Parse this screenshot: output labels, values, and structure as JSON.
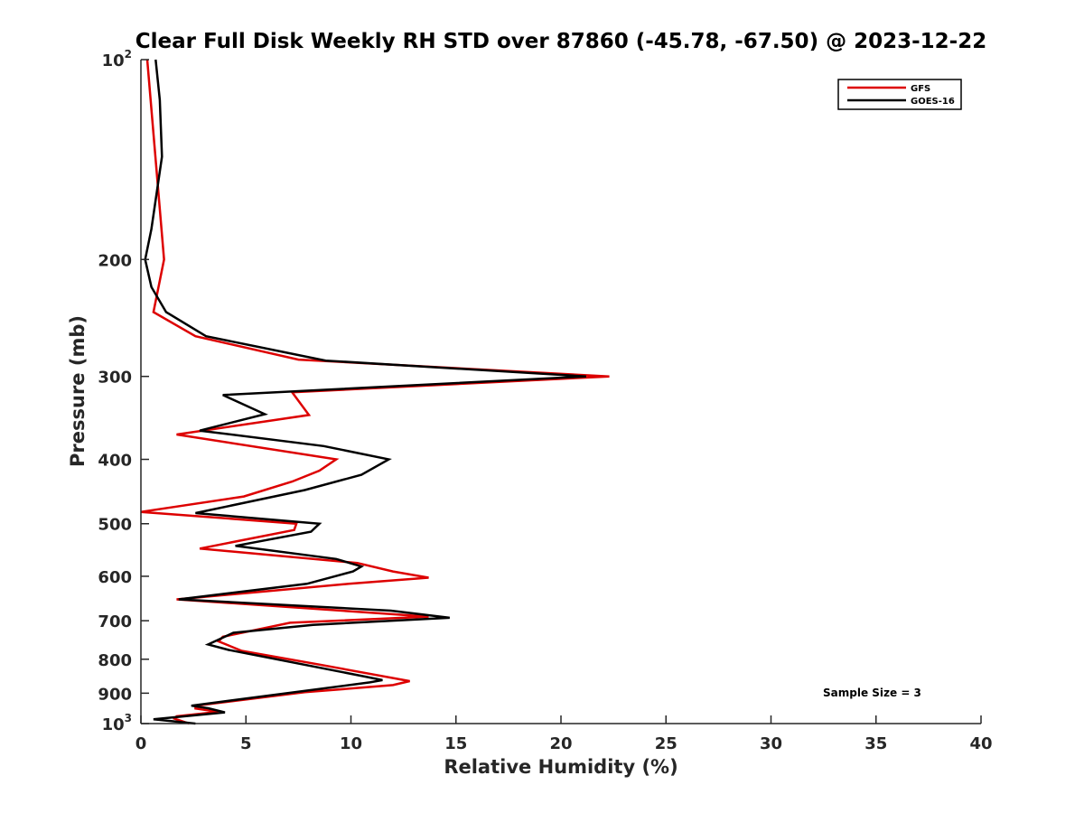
{
  "chart_data": {
    "type": "line",
    "title": "Clear Full Disk Weekly RH STD over 87860 (-45.78, -67.50) @ 2023-12-22",
    "xlabel": "Relative Humidity (%)",
    "ylabel": "Pressure (mb)",
    "xlim": [
      0,
      40
    ],
    "ylim": [
      1000,
      100
    ],
    "y_scale": "log",
    "x_ticks": [
      "0",
      "5",
      "10",
      "15",
      "20",
      "25",
      "30",
      "35",
      "40"
    ],
    "y_ticks": [
      {
        "value": 100,
        "label": "10",
        "sup": "2"
      },
      {
        "value": 200,
        "label": "200"
      },
      {
        "value": 300,
        "label": "300"
      },
      {
        "value": 400,
        "label": "400"
      },
      {
        "value": 500,
        "label": "500"
      },
      {
        "value": 600,
        "label": "600"
      },
      {
        "value": 700,
        "label": "700"
      },
      {
        "value": 800,
        "label": "800"
      },
      {
        "value": 900,
        "label": "900"
      },
      {
        "value": 1000,
        "label": "10",
        "sup": "3"
      }
    ],
    "grid": false,
    "legend_position": "top-right",
    "annotation": "Sample Size = 3",
    "series": [
      {
        "name": "GFS",
        "color": "#dd0000",
        "points": [
          [
            0.3,
            100
          ],
          [
            1.1,
            200
          ],
          [
            0.6,
            240
          ],
          [
            2.6,
            261
          ],
          [
            7.5,
            283
          ],
          [
            22.3,
            300
          ],
          [
            7.2,
            317
          ],
          [
            8.0,
            343
          ],
          [
            1.7,
            367
          ],
          [
            9.3,
            400
          ],
          [
            8.5,
            416
          ],
          [
            7.2,
            432
          ],
          [
            4.9,
            455
          ],
          [
            0.0,
            480
          ],
          [
            7.4,
            500
          ],
          [
            7.3,
            511
          ],
          [
            2.8,
            545
          ],
          [
            10.3,
            573
          ],
          [
            12.0,
            590
          ],
          [
            13.7,
            603
          ],
          [
            9.9,
            616
          ],
          [
            1.7,
            650
          ],
          [
            13.7,
            690
          ],
          [
            7.1,
            705
          ],
          [
            3.9,
            740
          ],
          [
            3.7,
            752
          ],
          [
            4.8,
            777
          ],
          [
            8.5,
            815
          ],
          [
            12.8,
            863
          ],
          [
            12.0,
            875
          ],
          [
            7.8,
            897
          ],
          [
            2.6,
            940
          ],
          [
            2.6,
            949
          ],
          [
            3.7,
            960
          ],
          [
            1.7,
            975
          ],
          [
            1.6,
            983
          ],
          [
            2.3,
            1000
          ]
        ]
      },
      {
        "name": "GOES-16",
        "color": "#000000",
        "points": [
          [
            0.7,
            100
          ],
          [
            0.9,
            115
          ],
          [
            1.0,
            140
          ],
          [
            0.5,
            180
          ],
          [
            0.2,
            200
          ],
          [
            0.5,
            220
          ],
          [
            1.2,
            240
          ],
          [
            3.1,
            261
          ],
          [
            8.8,
            284
          ],
          [
            21.2,
            300
          ],
          [
            3.9,
            320
          ],
          [
            5.9,
            342
          ],
          [
            2.8,
            362
          ],
          [
            8.7,
            382
          ],
          [
            11.8,
            400
          ],
          [
            10.5,
            422
          ],
          [
            7.8,
            445
          ],
          [
            2.6,
            482
          ],
          [
            8.5,
            500
          ],
          [
            8.1,
            514
          ],
          [
            4.5,
            540
          ],
          [
            9.3,
            565
          ],
          [
            10.5,
            580
          ],
          [
            10.1,
            590
          ],
          [
            7.9,
            616
          ],
          [
            1.8,
            650
          ],
          [
            11.9,
            676
          ],
          [
            14.7,
            693
          ],
          [
            8.2,
            710
          ],
          [
            4.4,
            730
          ],
          [
            3.2,
            760
          ],
          [
            4.2,
            775
          ],
          [
            10.7,
            850
          ],
          [
            11.5,
            860
          ],
          [
            10.9,
            867
          ],
          [
            2.4,
            940
          ],
          [
            3.2,
            948
          ],
          [
            4.0,
            962
          ],
          [
            0.6,
            985
          ],
          [
            2.6,
            1000
          ]
        ]
      }
    ]
  }
}
